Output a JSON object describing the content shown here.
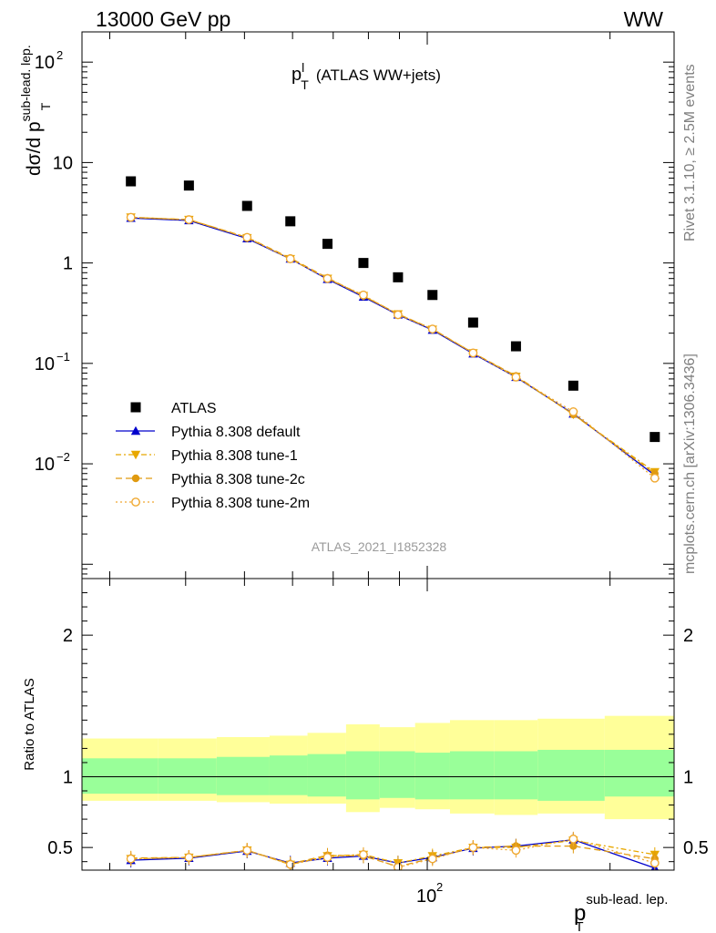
{
  "header": {
    "left": "13000 GeV pp",
    "right": "WW"
  },
  "side": {
    "rivet": "Rivet 3.1.10, ≥ 2.5M events",
    "mcplots": "mcplots.cern.ch [arXiv:1306.3436]"
  },
  "chart_data": [
    {
      "type": "scatter",
      "panel": "main",
      "title": "p",
      "title_sup": "l",
      "title_sub": "T",
      "title_suffix": "(ATLAS WW+jets)",
      "ylabel": "dσ/d p",
      "ylabel_sub": "T",
      "ylabel_sup": "sub-lead. lep.",
      "watermark": "ATLAS_2021_I1852328",
      "xscale": "log",
      "yscale": "log",
      "xlim": [
        27,
        255
      ],
      "ylim": [
        0.00072,
        200
      ],
      "ytick_labels": {
        "major_100": "10",
        "major_100_exp": "2",
        "major_10": "10",
        "major_1": "1",
        "major_0.1": "10",
        "major_0.1_exp": "−1",
        "major_0.01": "10",
        "major_0.01_exp": "−2"
      },
      "x": [
        32.5,
        40.5,
        50.5,
        59.5,
        68.5,
        78.5,
        89.5,
        102,
        119,
        140,
        174,
        237
      ],
      "series": [
        {
          "name": "ATLAS",
          "color": "#000000",
          "marker": "square",
          "values": [
            6.5,
            5.9,
            3.7,
            2.6,
            1.55,
            1.0,
            0.72,
            0.48,
            0.255,
            0.148,
            0.06,
            0.0185
          ]
        },
        {
          "name": "Pythia 8.308 default",
          "color": "#0000cc",
          "marker": "triangle-up",
          "line": "solid",
          "values": [
            2.8,
            2.65,
            1.75,
            1.1,
            0.69,
            0.46,
            0.305,
            0.215,
            0.125,
            0.073,
            0.0315,
            0.0077
          ]
        },
        {
          "name": "Pythia 8.308 tune-1",
          "color": "#e8a800",
          "marker": "triangle-down",
          "line": "dashdot",
          "values": [
            2.85,
            2.7,
            1.78,
            1.1,
            0.7,
            0.47,
            0.31,
            0.218,
            0.127,
            0.074,
            0.031,
            0.0083
          ]
        },
        {
          "name": "Pythia 8.308 tune-2c",
          "color": "#e09a10",
          "marker": "circle",
          "line": "dashed",
          "values": [
            2.85,
            2.7,
            1.8,
            1.12,
            0.71,
            0.47,
            0.31,
            0.22,
            0.127,
            0.075,
            0.031,
            0.008
          ]
        },
        {
          "name": "Pythia 8.308 tune-2m",
          "color": "#f0a830",
          "marker": "circle-open",
          "line": "dotted",
          "values": [
            2.85,
            2.7,
            1.8,
            1.1,
            0.7,
            0.48,
            0.305,
            0.22,
            0.127,
            0.073,
            0.033,
            0.0072
          ]
        }
      ]
    },
    {
      "type": "line",
      "panel": "ratio",
      "ylabel": "Ratio to ATLAS",
      "xlabel": "p",
      "xlabel_sub": "T",
      "xlabel_sup": "sub-lead. lep.",
      "xtick_label": "10",
      "xtick_label_exp": "2",
      "xscale": "log",
      "xlim": [
        27,
        255
      ],
      "ylim": [
        0.34,
        2.4
      ],
      "ytick_labels": [
        "0.5",
        "1",
        "2"
      ],
      "bin_edges": [
        27,
        36,
        45,
        55,
        63.5,
        73.5,
        83.5,
        95.5,
        109,
        129,
        152,
        196,
        255
      ],
      "band_inner": [
        [
          0.88,
          1.13
        ],
        [
          0.88,
          1.13
        ],
        [
          0.87,
          1.14
        ],
        [
          0.87,
          1.15
        ],
        [
          0.86,
          1.16
        ],
        [
          0.84,
          1.18
        ],
        [
          0.85,
          1.18
        ],
        [
          0.84,
          1.17
        ],
        [
          0.84,
          1.18
        ],
        [
          0.84,
          1.18
        ],
        [
          0.83,
          1.19
        ],
        [
          0.86,
          1.19
        ]
      ],
      "band_outer": [
        [
          0.83,
          1.27
        ],
        [
          0.83,
          1.27
        ],
        [
          0.82,
          1.28
        ],
        [
          0.81,
          1.29
        ],
        [
          0.81,
          1.31
        ],
        [
          0.75,
          1.37
        ],
        [
          0.78,
          1.35
        ],
        [
          0.77,
          1.38
        ],
        [
          0.74,
          1.4
        ],
        [
          0.73,
          1.4
        ],
        [
          0.74,
          1.41
        ],
        [
          0.7,
          1.43
        ]
      ],
      "x": [
        32.5,
        40.5,
        50.5,
        59.5,
        68.5,
        78.5,
        89.5,
        102,
        119,
        140,
        174,
        237
      ],
      "series": [
        {
          "name": "Pythia 8.308 default",
          "color": "#0000cc",
          "marker": "triangle-up",
          "line": "solid",
          "values": [
            0.41,
            0.425,
            0.475,
            0.39,
            0.425,
            0.44,
            0.39,
            0.43,
            0.495,
            0.51,
            0.555,
            0.355
          ]
        },
        {
          "name": "Pythia 8.308 tune-1",
          "color": "#e8a800",
          "marker": "triangle-down",
          "line": "dashdot",
          "values": [
            0.42,
            0.43,
            0.48,
            0.38,
            0.44,
            0.45,
            0.39,
            0.44,
            0.5,
            0.5,
            0.55,
            0.45
          ]
        },
        {
          "name": "Pythia 8.308 tune-2c",
          "color": "#e09a10",
          "marker": "circle",
          "line": "dashed",
          "values": [
            0.425,
            0.43,
            0.48,
            0.385,
            0.445,
            0.44,
            0.365,
            0.425,
            0.5,
            0.51,
            0.51,
            0.42
          ]
        },
        {
          "name": "Pythia 8.308 tune-2m",
          "color": "#f0a830",
          "marker": "circle-open",
          "line": "dotted",
          "values": [
            0.42,
            0.43,
            0.48,
            0.38,
            0.43,
            0.45,
            0.36,
            0.42,
            0.5,
            0.48,
            0.56,
            0.39
          ]
        }
      ]
    }
  ]
}
